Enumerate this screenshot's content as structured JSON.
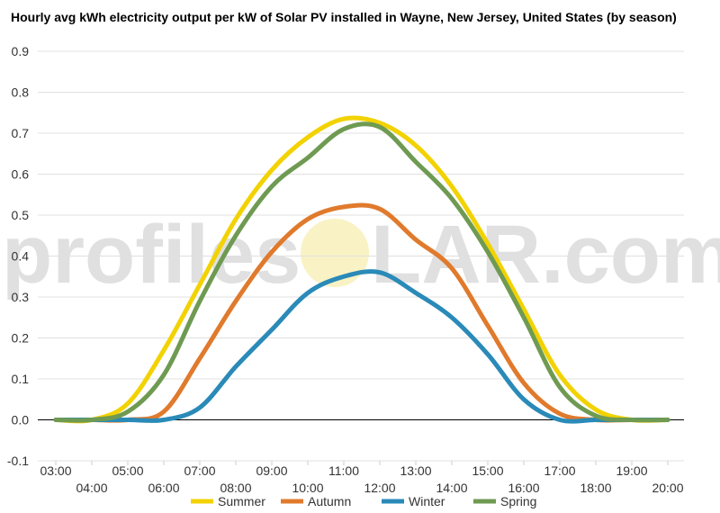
{
  "title": "Hourly avg kWh electricity output per kW of Solar PV installed in Wayne, New Jersey, United States (by season)",
  "watermark": {
    "left": "profiles",
    "right": "LAR.com"
  },
  "colors": {
    "Summer": "#f2d200",
    "Autumn": "#e07a2c",
    "Winter": "#2a8ab8",
    "Spring": "#6f9a52",
    "watermark_sun": "#f7eeb0"
  },
  "chart_data": {
    "type": "line",
    "x": [
      "03:00",
      "04:00",
      "05:00",
      "06:00",
      "07:00",
      "08:00",
      "09:00",
      "10:00",
      "11:00",
      "12:00",
      "13:00",
      "14:00",
      "15:00",
      "16:00",
      "17:00",
      "18:00",
      "19:00",
      "20:00"
    ],
    "series": [
      {
        "name": "Summer",
        "values": [
          0.0,
          0.0,
          0.04,
          0.17,
          0.33,
          0.49,
          0.61,
          0.69,
          0.735,
          0.725,
          0.67,
          0.57,
          0.43,
          0.27,
          0.11,
          0.025,
          0.0,
          0.0
        ]
      },
      {
        "name": "Autumn",
        "values": [
          0.0,
          0.0,
          0.0,
          0.02,
          0.15,
          0.29,
          0.41,
          0.49,
          0.52,
          0.515,
          0.44,
          0.37,
          0.23,
          0.09,
          0.015,
          0.0,
          0.0,
          0.0
        ]
      },
      {
        "name": "Winter",
        "values": [
          0.0,
          0.0,
          0.0,
          0.0,
          0.03,
          0.13,
          0.22,
          0.31,
          0.35,
          0.36,
          0.31,
          0.25,
          0.16,
          0.05,
          0.0,
          0.0,
          0.0,
          0.0
        ]
      },
      {
        "name": "Spring",
        "values": [
          0.0,
          0.0,
          0.02,
          0.11,
          0.29,
          0.45,
          0.57,
          0.64,
          0.71,
          0.715,
          0.63,
          0.54,
          0.41,
          0.25,
          0.08,
          0.01,
          0.0,
          0.0
        ]
      }
    ],
    "yticks": [
      "-0.1",
      "0.0",
      "0.1",
      "0.2",
      "0.3",
      "0.4",
      "0.5",
      "0.6",
      "0.7",
      "0.8",
      "0.9"
    ],
    "ylim": [
      -0.1,
      0.9
    ],
    "xlabel": "",
    "ylabel": "",
    "grid": true,
    "legend": "bottom"
  }
}
